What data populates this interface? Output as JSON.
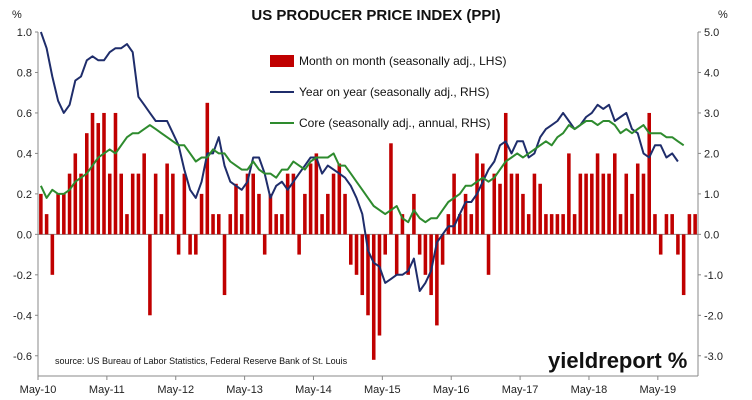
{
  "chart_data": {
    "type": "bar+line",
    "title": "US PRODUCER PRICE INDEX (PPI)",
    "left_unit": "%",
    "right_unit": "%",
    "left_axis": {
      "range": [
        -0.7,
        1.0
      ],
      "ticks": [
        "1.0",
        "0.8",
        "0.6",
        "0.4",
        "0.2",
        "0.0",
        "-0.2",
        "-0.4",
        "-0.6"
      ],
      "tick_values": [
        1.0,
        0.8,
        0.6,
        0.4,
        0.2,
        0.0,
        -0.2,
        -0.4,
        -0.6
      ]
    },
    "right_axis": {
      "range": [
        -3.5,
        5.0
      ],
      "ticks": [
        "5.0",
        "4.0",
        "3.0",
        "2.0",
        "1.0",
        "0.0",
        "-1.0",
        "-2.0",
        "-3.0"
      ],
      "tick_values": [
        5.0,
        4.0,
        3.0,
        2.0,
        1.0,
        0.0,
        -1.0,
        -2.0,
        -3.0
      ]
    },
    "x_tick_labels": [
      "May-10",
      "May-11",
      "May-12",
      "May-13",
      "May-14",
      "May-15",
      "May-16",
      "May-17",
      "May-18",
      "May-19"
    ],
    "x_tick_month_index": [
      0,
      12,
      24,
      36,
      48,
      60,
      72,
      84,
      96,
      108
    ],
    "start_month": "May-10",
    "legend": {
      "placement": "top-center",
      "items": [
        {
          "label": "Month on month (seasonally adj., LHS)",
          "kind": "bar",
          "color": "#C00000"
        },
        {
          "label": "Year on year (seasonally adj., RHS)",
          "kind": "line",
          "color": "#1F2D6B"
        },
        {
          "label": "Core (seasonally adj., annual, RHS)",
          "kind": "line",
          "color": "#2E8B2E"
        }
      ]
    },
    "series": [
      {
        "name": "Month on month (seasonally adj., LHS)",
        "axis": "left",
        "type": "bar",
        "color": "#C00000",
        "values": [
          0.2,
          0.1,
          -0.2,
          0.2,
          0.2,
          0.3,
          0.4,
          0.3,
          0.5,
          0.6,
          0.55,
          0.6,
          0.3,
          0.6,
          0.3,
          0.1,
          0.3,
          0.3,
          0.4,
          -0.4,
          0.3,
          0.1,
          0.35,
          0.3,
          -0.1,
          0.3,
          -0.1,
          -0.1,
          0.2,
          0.65,
          0.1,
          0.1,
          -0.3,
          0.1,
          0.25,
          0.1,
          0.3,
          0.3,
          0.2,
          -0.1,
          0.2,
          0.1,
          0.1,
          0.3,
          0.3,
          -0.1,
          0.2,
          0.35,
          0.4,
          0.1,
          0.2,
          0.3,
          0.35,
          0.2,
          -0.15,
          -0.2,
          -0.3,
          -0.4,
          -0.62,
          -0.5,
          -0.1,
          0.45,
          -0.2,
          0.1,
          -0.2,
          0.2,
          -0.1,
          -0.2,
          -0.3,
          -0.45,
          -0.15,
          0.1,
          0.3,
          0.1,
          0.2,
          0.1,
          0.4,
          0.35,
          -0.2,
          0.3,
          0.25,
          0.6,
          0.3,
          0.3,
          0.2,
          0.1,
          0.3,
          0.25,
          0.1,
          0.1,
          0.1,
          0.1,
          0.4,
          0.1,
          0.3,
          0.3,
          0.3,
          0.4,
          0.3,
          0.3,
          0.4,
          0.1,
          0.3,
          0.2,
          0.35,
          0.3,
          0.6,
          0.1,
          -0.1,
          0.1,
          0.1,
          -0.1,
          -0.3,
          0.1,
          0.1
        ]
      },
      {
        "name": "Year on year (seasonally adj., RHS)",
        "axis": "right",
        "type": "line",
        "color": "#1F2D6B",
        "values": [
          5.0,
          4.6,
          3.9,
          3.3,
          3.0,
          3.2,
          3.8,
          3.9,
          4.3,
          4.4,
          4.3,
          4.3,
          4.5,
          4.6,
          4.6,
          4.7,
          4.5,
          3.4,
          3.2,
          3.0,
          2.8,
          2.8,
          2.8,
          2.5,
          2.2,
          1.6,
          1.1,
          0.9,
          1.3,
          2.0,
          2.0,
          2.4,
          1.7,
          1.3,
          1.2,
          1.1,
          1.3,
          1.9,
          1.9,
          1.5,
          0.9,
          1.2,
          1.3,
          1.1,
          1.3,
          1.5,
          1.7,
          1.9,
          1.9,
          1.5,
          1.7,
          1.6,
          1.5,
          1.4,
          1.2,
          0.9,
          0.5,
          -0.4,
          -0.7,
          -0.8,
          -1.2,
          -1.1,
          -1.0,
          -1.0,
          -0.9,
          -0.6,
          -1.4,
          -1.2,
          -0.9,
          -0.2,
          0.0,
          0.2,
          0.2,
          0.5,
          0.8,
          0.8,
          1.0,
          1.3,
          1.6,
          1.8,
          2.2,
          2.3,
          2.0,
          2.3,
          2.3,
          1.9,
          2.0,
          2.4,
          2.6,
          2.7,
          2.8,
          3.0,
          2.8,
          2.6,
          2.7,
          2.9,
          3.0,
          3.2,
          3.1,
          3.2,
          2.8,
          2.9,
          3.0,
          2.6,
          2.5,
          2.0,
          1.9,
          2.2,
          2.2,
          1.9,
          2.0,
          1.8
        ]
      },
      {
        "name": "Core (seasonally adj., annual, RHS)",
        "axis": "right",
        "type": "line",
        "color": "#2E8B2E",
        "values": [
          1.2,
          0.9,
          1.1,
          1.0,
          1.0,
          1.1,
          1.3,
          1.4,
          1.5,
          1.7,
          1.9,
          2.0,
          2.1,
          2.0,
          2.2,
          2.4,
          2.5,
          2.5,
          2.6,
          2.7,
          2.6,
          2.5,
          2.4,
          2.3,
          2.2,
          2.2,
          2.0,
          1.8,
          1.9,
          1.9,
          2.1,
          2.0,
          2.0,
          1.8,
          1.7,
          1.6,
          1.6,
          1.8,
          1.6,
          1.5,
          1.5,
          1.4,
          1.6,
          1.6,
          1.8,
          1.7,
          1.6,
          1.8,
          1.9,
          1.9,
          1.9,
          2.0,
          1.7,
          1.7,
          1.5,
          1.3,
          1.1,
          0.9,
          0.7,
          0.6,
          0.5,
          0.6,
          0.7,
          0.4,
          0.3,
          0.6,
          0.4,
          0.3,
          0.4,
          0.4,
          0.6,
          0.8,
          0.9,
          1.0,
          1.2,
          1.2,
          1.3,
          1.4,
          1.3,
          1.4,
          1.6,
          1.8,
          1.9,
          2.0,
          1.9,
          2.0,
          2.1,
          2.2,
          2.3,
          2.2,
          2.4,
          2.5,
          2.7,
          2.6,
          2.7,
          2.8,
          2.8,
          2.7,
          2.8,
          2.8,
          2.7,
          2.5,
          2.6,
          2.5,
          2.6,
          2.7,
          2.5,
          2.5,
          2.5,
          2.4,
          2.4,
          2.3,
          2.2
        ]
      }
    ],
    "grid": false,
    "source": "source: US Bureau of Labor Statistics, Federal Reserve Bank of St. Louis",
    "logo": "yieldreport %"
  }
}
